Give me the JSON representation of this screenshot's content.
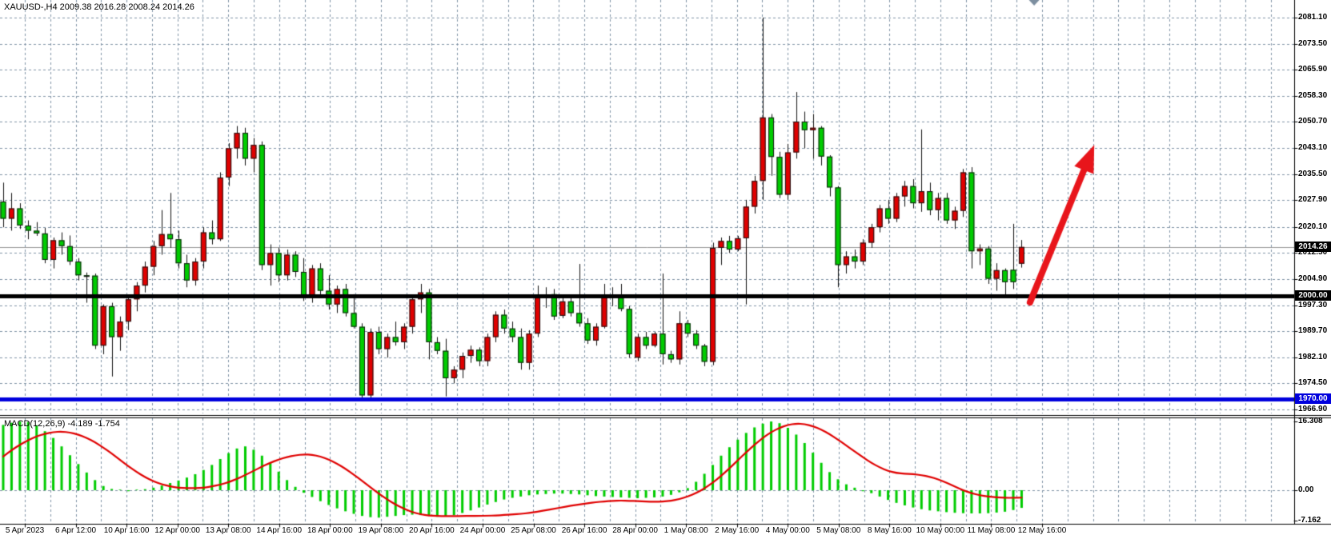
{
  "header": {
    "symbol_info": "XAUUSD-,H4 2009.38 2016.28 2008.24 2014.26"
  },
  "price_axis": {
    "current_price_badge": "2014.26",
    "hline_badge": "2000.00",
    "support_badge": "1970.00"
  },
  "indicator_panel": {
    "label": "MACD(12,26,9) -4.189 -1.754"
  },
  "colors": {
    "bull_body": "#e00000",
    "bear_body": "#00cc00",
    "candle_outline": "#151515",
    "wick": "#111111",
    "grid": "#8093a6",
    "hline_black": "#000000",
    "hline_blue": "#0000dd",
    "current_price_line": "#999999",
    "macd_histogram": "#00cc00",
    "macd_signal": "#e00000",
    "arrow": "#e8151b",
    "badge_dark_bg": "#000000",
    "badge_blue_bg": "#0000dd",
    "bar_marker": "#7d8fa0",
    "frame": "#000000"
  },
  "chart_data": {
    "type": "candlestick",
    "symbol": "XAUUSD-",
    "timeframe": "H4",
    "last_bar": {
      "open": 2009.38,
      "high": 2016.28,
      "low": 2008.24,
      "close": 2014.26
    },
    "y_axis": {
      "tick_labels": [
        "2081.10",
        "2073.50",
        "2065.90",
        "2058.30",
        "2050.70",
        "2043.10",
        "2035.50",
        "2027.90",
        "2020.10",
        "2012.50",
        "2004.90",
        "1997.30",
        "1989.70",
        "1982.10",
        "1974.50",
        "1966.90"
      ]
    },
    "x_axis": {
      "tick_labels": [
        "5 Apr 2023",
        "6 Apr 12:00",
        "10 Apr 16:00",
        "12 Apr 00:00",
        "13 Apr 08:00",
        "14 Apr 16:00",
        "18 Apr 00:00",
        "19 Apr 08:00",
        "20 Apr 16:00",
        "24 Apr 00:00",
        "25 Apr 08:00",
        "26 Apr 16:00",
        "28 Apr 00:00",
        "1 May 08:00",
        "2 May 16:00",
        "4 May 00:00",
        "5 May 08:00",
        "8 May 16:00",
        "10 May 00:00",
        "11 May 08:00",
        "12 May 16:00"
      ]
    },
    "horizontal_lines": [
      {
        "price": 2014.26,
        "style": "thin",
        "role": "current-price",
        "color": "gray"
      },
      {
        "price": 2000.0,
        "style": "thick",
        "role": "resistance",
        "color": "black"
      },
      {
        "price": 1970.0,
        "style": "thick",
        "role": "support",
        "color": "blue"
      }
    ],
    "candles_ohlc": [
      [
        2027.5,
        2033,
        2020,
        2022.5
      ],
      [
        2022.5,
        2030,
        2019,
        2025.5
      ],
      [
        2025.5,
        2027,
        2019.5,
        2020.5
      ],
      [
        2020.5,
        2022,
        2016.5,
        2019
      ],
      [
        2019,
        2021.5,
        2017.5,
        2018.2
      ],
      [
        2018.2,
        2019.8,
        2009.5,
        2010.5
      ],
      [
        2010.5,
        2017,
        2008,
        2016.2
      ],
      [
        2016.2,
        2018.5,
        2012,
        2014.5
      ],
      [
        2014.5,
        2017.6,
        2009,
        2010
      ],
      [
        2010,
        2011,
        2004.5,
        2006
      ],
      [
        2006,
        2006.8,
        1998,
        2005.9
      ],
      [
        2005.9,
        2006.5,
        1984.5,
        1985.5
      ],
      [
        1985.5,
        1997.5,
        1983,
        1997
      ],
      [
        1997,
        1998,
        1976.5,
        1988
      ],
      [
        1988,
        1994,
        1984,
        1992.5
      ],
      [
        1992.5,
        2000,
        1990,
        1999
      ],
      [
        1999,
        2004,
        1995.5,
        2003
      ],
      [
        2003,
        2010,
        2001,
        2008.5
      ],
      [
        2008.5,
        2016,
        2006,
        2014.5
      ],
      [
        2014.5,
        2025,
        2012,
        2018
      ],
      [
        2018,
        2030,
        2014,
        2016.5
      ],
      [
        2016.5,
        2019,
        2008,
        2009.5
      ],
      [
        2009.5,
        2012,
        2002.5,
        2004.5
      ],
      [
        2004.5,
        2011,
        2003,
        2010
      ],
      [
        2010,
        2020,
        2008,
        2018.5
      ],
      [
        2018.5,
        2022,
        2015,
        2016.5
      ],
      [
        2016.5,
        2036,
        2016,
        2034.5
      ],
      [
        2034.5,
        2044.5,
        2032,
        2043
      ],
      [
        2043,
        2049.5,
        2040,
        2047.5
      ],
      [
        2047.5,
        2049,
        2038,
        2040
      ],
      [
        2040,
        2046,
        2036,
        2044
      ],
      [
        2044,
        2045,
        2007.5,
        2009
      ],
      [
        2009,
        2015,
        2003,
        2012.5
      ],
      [
        2012.5,
        2014,
        2004,
        2006
      ],
      [
        2006,
        2013.5,
        2004.5,
        2012
      ],
      [
        2012,
        2013,
        2005.5,
        2007
      ],
      [
        2007,
        2011,
        1998.5,
        1999.5
      ],
      [
        1999.5,
        2009,
        1998,
        2008
      ],
      [
        2008,
        2009.5,
        2000,
        2001.5
      ],
      [
        2001.5,
        2006,
        1996,
        1997.5
      ],
      [
        1997.5,
        2003,
        1995,
        2002
      ],
      [
        2002,
        2003.5,
        1994,
        1995
      ],
      [
        1995,
        2000.5,
        1990.5,
        1991
      ],
      [
        1991,
        1992,
        1969.8,
        1971
      ],
      [
        1971,
        1990.5,
        1969.5,
        1989.5
      ],
      [
        1989.5,
        1991,
        1983,
        1984.5
      ],
      [
        1984.5,
        1989,
        1982,
        1988
      ],
      [
        1988,
        1992.5,
        1985.5,
        1986.5
      ],
      [
        1986.5,
        1992,
        1984.5,
        1991
      ],
      [
        1991,
        2000,
        1989,
        1999
      ],
      [
        1999,
        2003.5,
        1995,
        2001
      ],
      [
        2001,
        2002,
        1981.5,
        1986.5
      ],
      [
        1986.5,
        1988,
        1983,
        1984
      ],
      [
        1984,
        1987.5,
        1970.7,
        1976
      ],
      [
        1976,
        1979.5,
        1974.5,
        1978.5
      ],
      [
        1978.5,
        1983.5,
        1976,
        1982.5
      ],
      [
        1982.5,
        1985.5,
        1980.5,
        1984.3
      ],
      [
        1984.3,
        1985,
        1979.5,
        1981
      ],
      [
        1981,
        1989,
        1979.5,
        1988
      ],
      [
        1988,
        1995.5,
        1986.5,
        1994.5
      ],
      [
        1994.5,
        1996,
        1989,
        1990.5
      ],
      [
        1990.5,
        1992.5,
        1986.5,
        1988
      ],
      [
        1988,
        1990.5,
        1978.5,
        1980.5
      ],
      [
        1980.5,
        1990,
        1978.5,
        1989
      ],
      [
        1989,
        2003,
        1988,
        1999.5
      ],
      [
        1999.5,
        2002.5,
        1996.5,
        1999.8
      ],
      [
        2000.5,
        2002,
        1993,
        1994
      ],
      [
        1994.2,
        1999.5,
        1993.5,
        1998.4
      ],
      [
        1998.4,
        1999.5,
        1994,
        1995
      ],
      [
        1995,
        2009.3,
        1991,
        1992
      ],
      [
        1992,
        1993.5,
        1986,
        1987
      ],
      [
        1987,
        1992,
        1985.5,
        1991
      ],
      [
        1991,
        2003.5,
        1990.5,
        2000
      ],
      [
        2000,
        2002.5,
        1997,
        1999.5
      ],
      [
        1999.5,
        2003.5,
        1995.5,
        1996.2
      ],
      [
        1996.2,
        1997,
        1982,
        1983
      ],
      [
        1982,
        1989,
        1981,
        1988
      ],
      [
        1988,
        1989.5,
        1984.5,
        1985.5
      ],
      [
        1985.5,
        1989.5,
        1985,
        1989
      ],
      [
        1989,
        2006.5,
        1980,
        1983
      ],
      [
        1983,
        1984,
        1980.5,
        1981.5
      ],
      [
        1981.5,
        1995.5,
        1980,
        1992
      ],
      [
        1992,
        1993,
        1988,
        1989
      ],
      [
        1989,
        1990,
        1984.5,
        1985.5
      ],
      [
        1985.5,
        1986,
        1979.5,
        1980.8
      ],
      [
        1980.8,
        2015.5,
        1979.8,
        2014
      ],
      [
        2014,
        2017,
        2009,
        2016
      ],
      [
        2016,
        2017.5,
        2012.5,
        2013.5
      ],
      [
        2013.5,
        2017.5,
        2013,
        2016.8
      ],
      [
        2016.8,
        2028,
        1997.5,
        2026
      ],
      [
        2026,
        2035,
        2024,
        2033.5
      ],
      [
        2033.5,
        2081.1,
        2028,
        2052
      ],
      [
        2052,
        2053,
        2035,
        2040.5
      ],
      [
        2040.5,
        2042,
        2028.5,
        2029.5
      ],
      [
        2029.5,
        2044.3,
        2028,
        2041.8
      ],
      [
        2041.8,
        2059.4,
        2040,
        2050.8
      ],
      [
        2050.8,
        2053.7,
        2043,
        2048.3
      ],
      [
        2048.3,
        2053,
        2040,
        2049
      ],
      [
        2049,
        2049.5,
        2038,
        2040.6
      ],
      [
        2040.6,
        2041,
        2029,
        2031.6
      ],
      [
        2031.6,
        2032,
        2002.5,
        2009
      ],
      [
        2009,
        2013,
        2006.5,
        2011.5
      ],
      [
        2011.5,
        2013.5,
        2008,
        2010
      ],
      [
        2010,
        2016.5,
        2009,
        2015.5
      ],
      [
        2015.5,
        2021,
        2014,
        2020
      ],
      [
        2020,
        2026.5,
        2018.5,
        2025.5
      ],
      [
        2025.5,
        2028,
        2021,
        2022.5
      ],
      [
        2022.5,
        2030,
        2021.5,
        2029
      ],
      [
        2029,
        2033.5,
        2026,
        2032
      ],
      [
        2032,
        2034,
        2025.5,
        2027
      ],
      [
        2027,
        2048.5,
        2024.5,
        2030.5
      ],
      [
        2030.5,
        2033,
        2023.5,
        2025
      ],
      [
        2025,
        2030,
        2022,
        2028.5
      ],
      [
        2028.5,
        2030,
        2021,
        2022
      ],
      [
        2022,
        2026,
        2019.5,
        2024.8
      ],
      [
        2024.8,
        2037,
        2023,
        2036
      ],
      [
        2036,
        2037.5,
        2008,
        2013
      ],
      [
        2013,
        2015,
        2009,
        2013.8
      ],
      [
        2013.8,
        2014.5,
        2003.5,
        2005
      ],
      [
        2005,
        2009.5,
        2001.5,
        2007.5
      ],
      [
        2007.5,
        2008,
        1999.8,
        2004
      ],
      [
        2007.6,
        2021,
        2002,
        2004
      ],
      [
        2009.38,
        2016.28,
        2008.24,
        2014.26
      ]
    ],
    "macd": {
      "params": [
        12,
        26,
        9
      ],
      "main_last": -4.189,
      "signal_last": -1.754,
      "scale_labels": [
        "16.308",
        "0.00",
        "-7.162"
      ],
      "histogram": [
        15.5,
        16.0,
        16.3,
        16.2,
        15.4,
        14.0,
        12.4,
        10.4,
        8.3,
        6.2,
        4.2,
        2.4,
        1.0,
        0.3,
        0.15,
        0.1,
        0.15,
        0.25,
        0.6,
        1.1,
        1.7,
        2.3,
        3.0,
        3.8,
        4.8,
        6.0,
        7.4,
        8.8,
        9.9,
        10.4,
        9.6,
        8.2,
        6.4,
        4.4,
        2.4,
        0.8,
        -0.6,
        -1.6,
        -2.6,
        -3.5,
        -4.3,
        -5.0,
        -5.6,
        -6.1,
        -6.4,
        -6.5,
        -6.3,
        -6.1,
        -5.9,
        -5.8,
        -5.9,
        -6.1,
        -6.3,
        -6.2,
        -5.9,
        -5.4,
        -4.8,
        -4.1,
        -3.4,
        -2.8,
        -2.2,
        -1.8,
        -1.5,
        -1.2,
        -1.0,
        -0.9,
        -0.8,
        -0.8,
        -0.9,
        -1.0,
        -1.2,
        -1.4,
        -1.5,
        -1.6,
        -1.7,
        -1.8,
        -1.9,
        -1.8,
        -1.7,
        -1.5,
        -1.1,
        -0.5,
        0.5,
        2.0,
        3.9,
        6.0,
        8.2,
        10.2,
        12.0,
        13.6,
        14.9,
        15.8,
        16.308,
        15.9,
        14.8,
        13.2,
        11.2,
        8.9,
        6.5,
        4.3,
        2.6,
        1.4,
        0.6,
        0.1,
        -0.7,
        -1.5,
        -2.3,
        -3.0,
        -3.6,
        -4.1,
        -4.5,
        -4.8,
        -5.0,
        -5.2,
        -5.35,
        -5.45,
        -5.5,
        -5.5,
        -5.45,
        -5.3,
        -5.1,
        -4.7,
        -4.189
      ],
      "signal": [
        8.0,
        9.5,
        10.8,
        11.9,
        12.8,
        13.4,
        13.8,
        13.9,
        13.7,
        13.2,
        12.4,
        11.4,
        10.1,
        8.7,
        7.2,
        5.7,
        4.3,
        3.1,
        2.1,
        1.4,
        0.9,
        0.6,
        0.5,
        0.5,
        0.6,
        0.9,
        1.3,
        1.9,
        2.7,
        3.6,
        4.6,
        5.6,
        6.5,
        7.3,
        7.9,
        8.3,
        8.5,
        8.4,
        8.0,
        7.3,
        6.3,
        5.1,
        3.7,
        2.2,
        0.7,
        -0.8,
        -2.2,
        -3.4,
        -4.4,
        -5.2,
        -5.7,
        -6.0,
        -6.1,
        -6.15,
        -6.15,
        -6.1,
        -6.1,
        -6.1,
        -6.05,
        -6.0,
        -5.9,
        -5.75,
        -5.6,
        -5.4,
        -5.1,
        -4.75,
        -4.4,
        -4.05,
        -3.7,
        -3.4,
        -3.1,
        -2.85,
        -2.65,
        -2.5,
        -2.45,
        -2.5,
        -2.6,
        -2.7,
        -2.75,
        -2.7,
        -2.5,
        -2.1,
        -1.5,
        -0.7,
        0.4,
        1.8,
        3.4,
        5.2,
        7.1,
        9.0,
        10.8,
        12.4,
        13.8,
        14.8,
        15.5,
        15.8,
        15.7,
        15.2,
        14.4,
        13.3,
        12.0,
        10.6,
        9.2,
        7.8,
        6.5,
        5.4,
        4.6,
        4.1,
        3.9,
        3.8,
        3.6,
        3.2,
        2.6,
        1.8,
        0.9,
        0.0,
        -0.7,
        -1.2,
        -1.5,
        -1.7,
        -1.8,
        -1.8,
        -1.754
      ]
    },
    "annotations": [
      {
        "type": "arrow",
        "direction": "up",
        "tail": {
          "bar_index": 123.0,
          "price": 1998.1
        },
        "head": {
          "bar_index": 130.7,
          "price": 2044.0
        }
      },
      {
        "type": "bar-marker",
        "bar_index": 123.5
      }
    ]
  }
}
